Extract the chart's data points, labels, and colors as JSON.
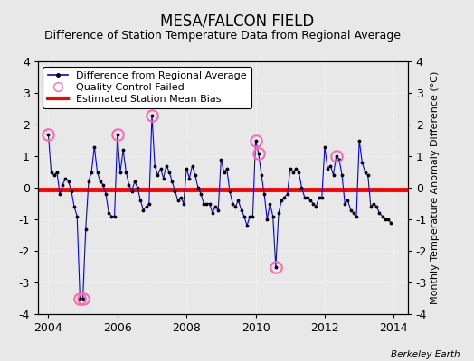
{
  "title": "MESA/FALCON FIELD",
  "subtitle": "Difference of Station Temperature Data from Regional Average",
  "ylabel": "Monthly Temperature Anomaly Difference (°C)",
  "xlabel_bottom": "Berkeley Earth",
  "bg_color": "#e8e8e8",
  "plot_bg_color": "#e8e8e8",
  "ylim": [
    -4,
    4
  ],
  "xlim": [
    2003.7,
    2014.4
  ],
  "xticks": [
    2004,
    2006,
    2008,
    2010,
    2012,
    2014
  ],
  "yticks": [
    -4,
    -3,
    -2,
    -1,
    0,
    1,
    2,
    3,
    4
  ],
  "bias_value": -0.07,
  "line_color": "#0000ff",
  "bias_color": "#ff0000",
  "qc_color": "#ff69b4",
  "time_series": [
    [
      2004.0,
      1.7
    ],
    [
      2004.083,
      0.5
    ],
    [
      2004.167,
      0.4
    ],
    [
      2004.25,
      0.5
    ],
    [
      2004.333,
      -0.2
    ],
    [
      2004.417,
      0.1
    ],
    [
      2004.5,
      0.3
    ],
    [
      2004.583,
      0.2
    ],
    [
      2004.667,
      -0.1
    ],
    [
      2004.75,
      -0.6
    ],
    [
      2004.833,
      -0.9
    ],
    [
      2004.917,
      -3.5
    ],
    [
      2005.0,
      -3.5
    ],
    [
      2005.083,
      -1.3
    ],
    [
      2005.167,
      0.2
    ],
    [
      2005.25,
      0.5
    ],
    [
      2005.333,
      1.3
    ],
    [
      2005.417,
      0.5
    ],
    [
      2005.5,
      0.2
    ],
    [
      2005.583,
      0.1
    ],
    [
      2005.667,
      -0.2
    ],
    [
      2005.75,
      -0.8
    ],
    [
      2005.833,
      -0.9
    ],
    [
      2005.917,
      -0.9
    ],
    [
      2006.0,
      1.7
    ],
    [
      2006.083,
      0.5
    ],
    [
      2006.167,
      1.2
    ],
    [
      2006.25,
      0.5
    ],
    [
      2006.333,
      0.1
    ],
    [
      2006.417,
      -0.1
    ],
    [
      2006.5,
      0.2
    ],
    [
      2006.583,
      0.0
    ],
    [
      2006.667,
      -0.4
    ],
    [
      2006.75,
      -0.7
    ],
    [
      2006.833,
      -0.6
    ],
    [
      2006.917,
      -0.5
    ],
    [
      2007.0,
      2.3
    ],
    [
      2007.083,
      0.7
    ],
    [
      2007.167,
      0.4
    ],
    [
      2007.25,
      0.6
    ],
    [
      2007.333,
      0.3
    ],
    [
      2007.417,
      0.7
    ],
    [
      2007.5,
      0.5
    ],
    [
      2007.583,
      0.2
    ],
    [
      2007.667,
      -0.1
    ],
    [
      2007.75,
      -0.4
    ],
    [
      2007.833,
      -0.3
    ],
    [
      2007.917,
      -0.5
    ],
    [
      2008.0,
      0.6
    ],
    [
      2008.083,
      0.3
    ],
    [
      2008.167,
      0.7
    ],
    [
      2008.25,
      0.4
    ],
    [
      2008.333,
      0.0
    ],
    [
      2008.417,
      -0.2
    ],
    [
      2008.5,
      -0.5
    ],
    [
      2008.583,
      -0.5
    ],
    [
      2008.667,
      -0.5
    ],
    [
      2008.75,
      -0.8
    ],
    [
      2008.833,
      -0.6
    ],
    [
      2008.917,
      -0.7
    ],
    [
      2009.0,
      0.9
    ],
    [
      2009.083,
      0.5
    ],
    [
      2009.167,
      0.6
    ],
    [
      2009.25,
      -0.1
    ],
    [
      2009.333,
      -0.5
    ],
    [
      2009.417,
      -0.6
    ],
    [
      2009.5,
      -0.4
    ],
    [
      2009.583,
      -0.7
    ],
    [
      2009.667,
      -0.9
    ],
    [
      2009.75,
      -1.2
    ],
    [
      2009.833,
      -0.9
    ],
    [
      2009.917,
      -0.9
    ],
    [
      2010.0,
      1.5
    ],
    [
      2010.083,
      1.1
    ],
    [
      2010.167,
      0.4
    ],
    [
      2010.25,
      -0.2
    ],
    [
      2010.333,
      -1.0
    ],
    [
      2010.417,
      -0.5
    ],
    [
      2010.5,
      -0.9
    ],
    [
      2010.583,
      -2.5
    ],
    [
      2010.667,
      -0.8
    ],
    [
      2010.75,
      -0.4
    ],
    [
      2010.833,
      -0.3
    ],
    [
      2010.917,
      -0.2
    ],
    [
      2011.0,
      0.6
    ],
    [
      2011.083,
      0.5
    ],
    [
      2011.167,
      0.6
    ],
    [
      2011.25,
      0.5
    ],
    [
      2011.333,
      0.0
    ],
    [
      2011.417,
      -0.3
    ],
    [
      2011.5,
      -0.3
    ],
    [
      2011.583,
      -0.4
    ],
    [
      2011.667,
      -0.5
    ],
    [
      2011.75,
      -0.6
    ],
    [
      2011.833,
      -0.3
    ],
    [
      2011.917,
      -0.3
    ],
    [
      2012.0,
      1.3
    ],
    [
      2012.083,
      0.6
    ],
    [
      2012.167,
      0.7
    ],
    [
      2012.25,
      0.4
    ],
    [
      2012.333,
      1.0
    ],
    [
      2012.417,
      0.9
    ],
    [
      2012.5,
      0.4
    ],
    [
      2012.583,
      -0.5
    ],
    [
      2012.667,
      -0.4
    ],
    [
      2012.75,
      -0.7
    ],
    [
      2012.833,
      -0.8
    ],
    [
      2012.917,
      -0.9
    ],
    [
      2013.0,
      1.5
    ],
    [
      2013.083,
      0.8
    ],
    [
      2013.167,
      0.5
    ],
    [
      2013.25,
      0.4
    ],
    [
      2013.333,
      -0.6
    ],
    [
      2013.417,
      -0.5
    ],
    [
      2013.5,
      -0.6
    ],
    [
      2013.583,
      -0.8
    ],
    [
      2013.667,
      -0.9
    ],
    [
      2013.75,
      -1.0
    ],
    [
      2013.833,
      -1.0
    ],
    [
      2013.917,
      -1.1
    ]
  ],
  "qc_points": [
    [
      2004.0,
      1.7
    ],
    [
      2004.917,
      -3.5
    ],
    [
      2005.0,
      -3.5
    ],
    [
      2006.0,
      1.7
    ],
    [
      2007.0,
      2.3
    ],
    [
      2010.0,
      1.5
    ],
    [
      2010.083,
      1.1
    ],
    [
      2010.583,
      -2.5
    ],
    [
      2012.333,
      1.0
    ]
  ],
  "title_fontsize": 12,
  "subtitle_fontsize": 9,
  "tick_fontsize": 9,
  "ylabel_fontsize": 8,
  "legend_fontsize": 8
}
